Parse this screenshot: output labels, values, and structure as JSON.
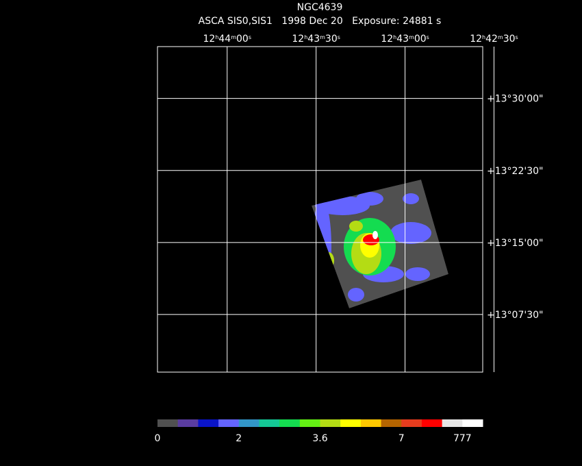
{
  "chart_data": {
    "type": "image",
    "title": "NGC4639",
    "subtitle": "ASCA SIS0,SIS1   1998 Dec 20   Exposure: 24881 s",
    "xlim": [
      45863.5,
      45753.8
    ],
    "xticks": [
      {
        "value": 45840,
        "label": "12h44m00s"
      },
      {
        "value": 45810,
        "label": "12h43m30s"
      },
      {
        "value": 45780,
        "label": "12h43m00s"
      },
      {
        "value": 45750,
        "label": "12h42m30s"
      }
    ],
    "ylim": [
      781.5,
      815.4
    ],
    "yticks": [
      {
        "value": 810,
        "label": "+13°30'00\""
      },
      {
        "value": 802.5,
        "label": "+13°22'30\""
      },
      {
        "value": 795,
        "label": "+13°15'00\""
      },
      {
        "value": 787.5,
        "label": "+13°07'30\""
      }
    ],
    "grid": true,
    "colorbar": {
      "colors": [
        "#505050",
        "#5a3ca0",
        "#0a14c8",
        "#6464ff",
        "#3296c8",
        "#14c896",
        "#14dc50",
        "#64f014",
        "#b4dc14",
        "#ffff00",
        "#ffc800",
        "#b46400",
        "#e63c1e",
        "#ff0000",
        "#e6e6e6",
        "#ffffff"
      ],
      "ticks": [
        0,
        2,
        3.6,
        7,
        777
      ]
    }
  }
}
